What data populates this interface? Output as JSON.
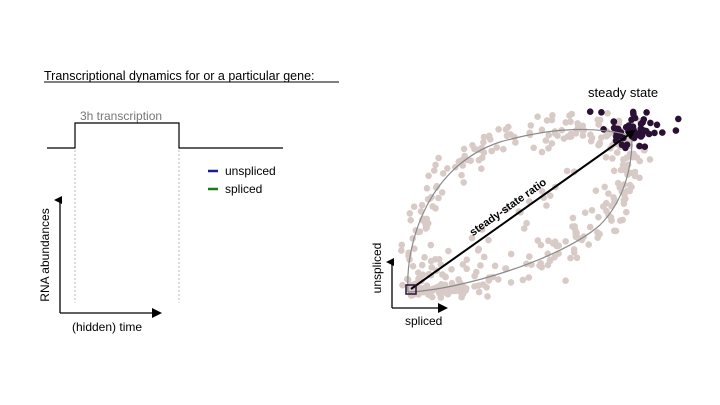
{
  "slide": {
    "title": "Transcriptional dynamics for or a particular gene:"
  },
  "left_panel": {
    "pulse_label": "3h transcription",
    "legend": [
      {
        "label": "unspliced",
        "color": "#1a1aa0"
      },
      {
        "label": "spliced",
        "color": "#1b7a1b"
      }
    ],
    "y_label": "RNA abundances",
    "x_label": "(hidden) time"
  },
  "right_panel": {
    "steady_state_label": "steady state",
    "ratio_label": "steady-state ratio",
    "y_label": "unspliced",
    "x_label": "spliced",
    "colors": {
      "cell": "#d8cac6",
      "steady_cell": "#2a1035",
      "arrow": "#000000",
      "curve": "#8a8a8a"
    }
  }
}
